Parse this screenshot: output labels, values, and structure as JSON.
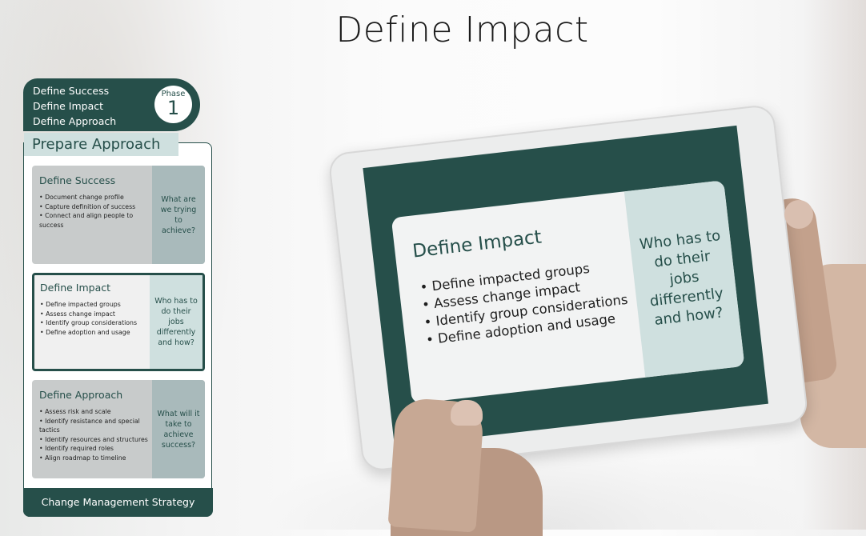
{
  "title": "Define Impact",
  "phase": {
    "items": [
      "Define Success",
      "Define Impact",
      "Define Approach"
    ],
    "badge_word": "Phase",
    "badge_number": "1"
  },
  "prepare_label": "Prepare Approach",
  "cards": [
    {
      "title": "Define Success",
      "bullets": [
        "Document change profile",
        "Capture definition of success",
        "Connect and align people to success"
      ],
      "question": "What are we trying to achieve?"
    },
    {
      "title": "Define Impact",
      "bullets": [
        "Define impacted groups",
        "Assess change impact",
        "Identify group considerations",
        "Define adoption and usage"
      ],
      "question": "Who has to do their jobs differently and how?"
    },
    {
      "title": "Define Approach",
      "bullets": [
        "Assess risk and scale",
        "Identify resistance and special tactics",
        "Identify resources and structures",
        "Identify required roles",
        "Align roadmap to timeline"
      ],
      "question": "What will it take to achieve success?"
    }
  ],
  "strategy_label": "Change Management Strategy",
  "tablet": {
    "title": "Define Impact",
    "bullets": [
      "Define impacted groups",
      "Assess change impact",
      "Identify group considerations",
      "Define adoption and usage"
    ],
    "question": "Who has to do their jobs differently and how?"
  },
  "colors": {
    "accent": "#264f4a",
    "light": "#cfe0df"
  }
}
